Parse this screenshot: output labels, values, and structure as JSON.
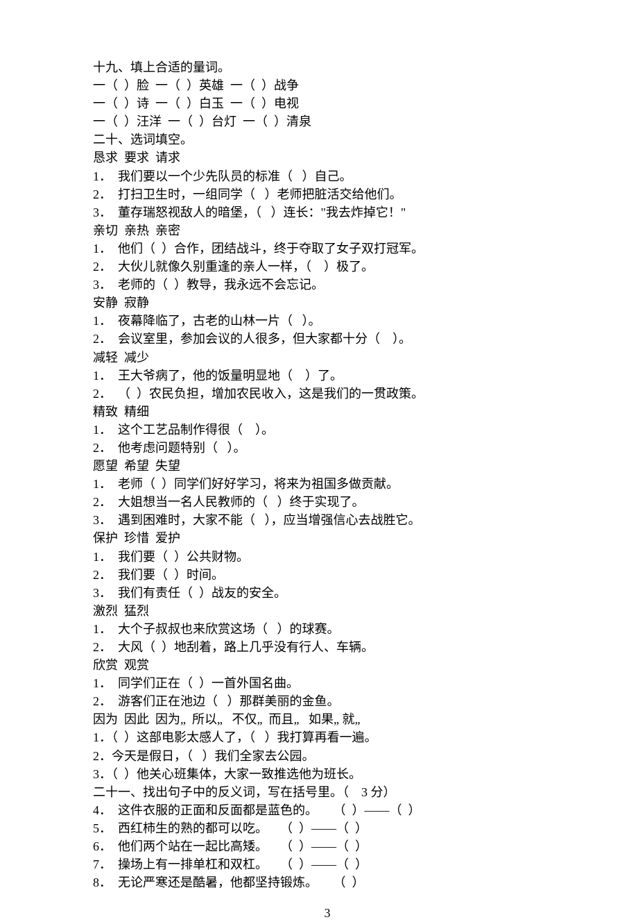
{
  "fontsize": 18,
  "lineheight": 1.45,
  "text_color": "#000000",
  "background_color": "#ffffff",
  "page_number": "3",
  "sections": {
    "s19": {
      "heading": "十九、填上合适的量词。",
      "lines": [
        "一（  ）脸  一（  ）英雄  一（  ）战争",
        "一（  ）诗  一（  ）白玉  一（  ）电视",
        "一（  ）汪洋  一（  ）台灯  一（  ）清泉"
      ]
    },
    "s20": {
      "heading": "二十、选词填空。",
      "groups": [
        {
          "words": "恳求  要求  请求",
          "items": [
            "1．  我们要以一个少先队员的标准（   ）自己。",
            "2．  打扫卫生时，一组同学（   ）老师把脏活交给他们。",
            "3．  董存瑞怒视敌人的暗堡，（   ）连长：\"我去炸掉它！\""
          ]
        },
        {
          "words": "亲切  亲热  亲密",
          "items": [
            "1．  他们（  ）合作，团结战斗，终于夺取了女子双打冠军。",
            "2．  大伙儿就像久别重逢的亲人一样，（    ）极了。",
            "3．  老师的（  ）教导，我永远不会忘记。"
          ]
        },
        {
          "words": "安静  寂静",
          "items": [
            "1．  夜幕降临了，古老的山林一片（   ）。",
            "2．  会议室里，参加会议的人很多，但大家都十分（    ）。"
          ]
        },
        {
          "words": "减轻  减少",
          "items": [
            "1．  王大爷病了，他的饭量明显地（    ）了。",
            "2．  （  ）农民负担，增加农民收入，这是我们的一贯政策。"
          ]
        },
        {
          "words": "精致  精细",
          "items": [
            "1．  这个工艺品制作得很（    ）。",
            "2．  他考虑问题特别（   ）。"
          ]
        },
        {
          "words": "愿望  希望  失望",
          "items": [
            "1．  老师（  ）同学们好好学习，将来为祖国多做贡献。",
            "2．  大姐想当一名人民教师的（   ）终于实现了。",
            "3．  遇到困难时，大家不能（   ），应当增强信心去战胜它。"
          ]
        },
        {
          "words": "保护  珍惜  爱护",
          "items": [
            "1．  我们要（  ）公共财物。",
            "2．  我们要（  ）时间。",
            "3．  我们有责任（  ）战友的安全。"
          ]
        },
        {
          "words": "激烈  猛烈",
          "items": [
            "1．  大个子叔叔也来欣赏这场（   ）的球赛。",
            "2．  大风（  ）地刮着，路上几乎没有行人、车辆。"
          ]
        },
        {
          "words": "欣赏  观赏",
          "items": [
            "1．  同学们正在（  ）一首外国名曲。",
            "2．  游客们正在池边（   ）那群美丽的金鱼。"
          ]
        },
        {
          "words": "因为  因此  因为„  所以„   不仅„  而且„   如果„ 就„",
          "items": [
            "1．（  ）这部电影太感人了，（   ）我打算再看一遍。",
            "2．今天是假日，（   ）我们全家去公园。",
            "3．（  ）他关心班集体，大家一致推选他为班长。"
          ]
        }
      ]
    },
    "s21": {
      "heading": "二十一、找出句子中的反义词，写在括号里。（    3 分）",
      "items": [
        "4．  这件衣服的正面和反面都是蓝色的。     （  ）——（  ）",
        "5．  西红柿生的熟的都可以吃。    （  ）——（  ）",
        "6．  他们两个站在一起比高矮。    （  ）——（  ）",
        "7．  操场上有一排单杠和双杠。    （  ）——（  ）",
        "8．  无论严寒还是酷暑，他都坚持锻炼。     （  ）"
      ]
    }
  }
}
